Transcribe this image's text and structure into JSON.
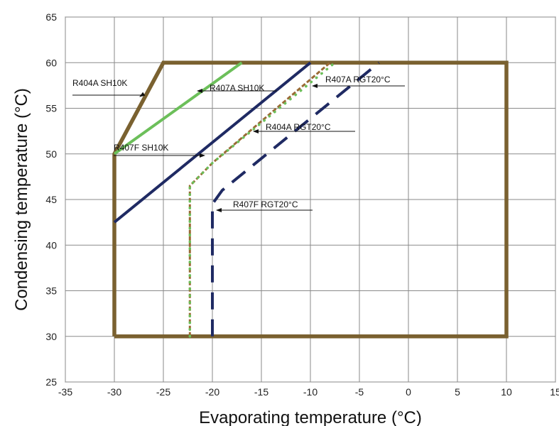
{
  "chart_data": {
    "type": "line",
    "title": "",
    "xlabel": "Evaporating  temperature (°C)",
    "ylabel": "Condensing temperature (°C)",
    "xlim": [
      -35,
      15
    ],
    "ylim": [
      25,
      65
    ],
    "xticks": [
      -35,
      -30,
      -25,
      -20,
      -15,
      -10,
      -5,
      0,
      5,
      10,
      15
    ],
    "yticks": [
      25,
      30,
      35,
      40,
      45,
      50,
      55,
      60,
      65
    ],
    "grid": true,
    "legend": "none",
    "series": [
      {
        "name": "",
        "color": "#7a6130",
        "style": "solid-thick",
        "points": [
          [
            -30,
            30
          ],
          [
            -30,
            50
          ],
          [
            -25,
            60
          ],
          [
            10,
            60
          ],
          [
            10,
            30
          ],
          [
            -30,
            30
          ]
        ]
      },
      {
        "name": "R404A SH10K",
        "color": "#7a6130",
        "style": "solid",
        "points": [
          [
            -30,
            50
          ],
          [
            -25,
            60
          ]
        ]
      },
      {
        "name": "R407A SH10K",
        "color": "#6cbf5a",
        "style": "solid",
        "points": [
          [
            -30,
            50
          ],
          [
            -17,
            60
          ]
        ]
      },
      {
        "name": "R407F SH10K",
        "color": "#1f2a63",
        "style": "solid",
        "points": [
          [
            -30,
            42.5
          ],
          [
            -10,
            60
          ]
        ]
      },
      {
        "name": "R404A RGT20°C",
        "color": "#9a6a35",
        "style": "dashed-brown",
        "points": [
          [
            -22.3,
            30
          ],
          [
            -22.3,
            46.5
          ],
          [
            -20,
            49
          ],
          [
            -8,
            60
          ]
        ]
      },
      {
        "name": "R407A RGT20°C",
        "color": "#6cbf5a",
        "style": "dotted",
        "points": [
          [
            -22.3,
            30
          ],
          [
            -22.3,
            46.5
          ],
          [
            -20,
            49
          ],
          [
            -7.5,
            60
          ]
        ]
      },
      {
        "name": "R407F RGT20°C",
        "color": "#1f2a63",
        "style": "dashed",
        "points": [
          [
            -20,
            30
          ],
          [
            -20,
            44.5
          ],
          [
            -19,
            46
          ],
          [
            -3,
            60
          ]
        ]
      }
    ],
    "annotations": [
      {
        "text": "R404A SH10K",
        "at": [
          -28.5,
          57.5
        ]
      },
      {
        "text": "R407A SH10K",
        "at": [
          -19.5,
          56.5
        ]
      },
      {
        "text": "R407F SH10K",
        "at": [
          -24.5,
          50.5
        ]
      },
      {
        "text": "R407A RGT20°C",
        "at": [
          -9.5,
          57.5
        ]
      },
      {
        "text": "R404A RGT20°C",
        "at": [
          -14.5,
          53
        ]
      },
      {
        "text": "R407F RGT20°C",
        "at": [
          -19.5,
          43.5
        ]
      }
    ]
  }
}
